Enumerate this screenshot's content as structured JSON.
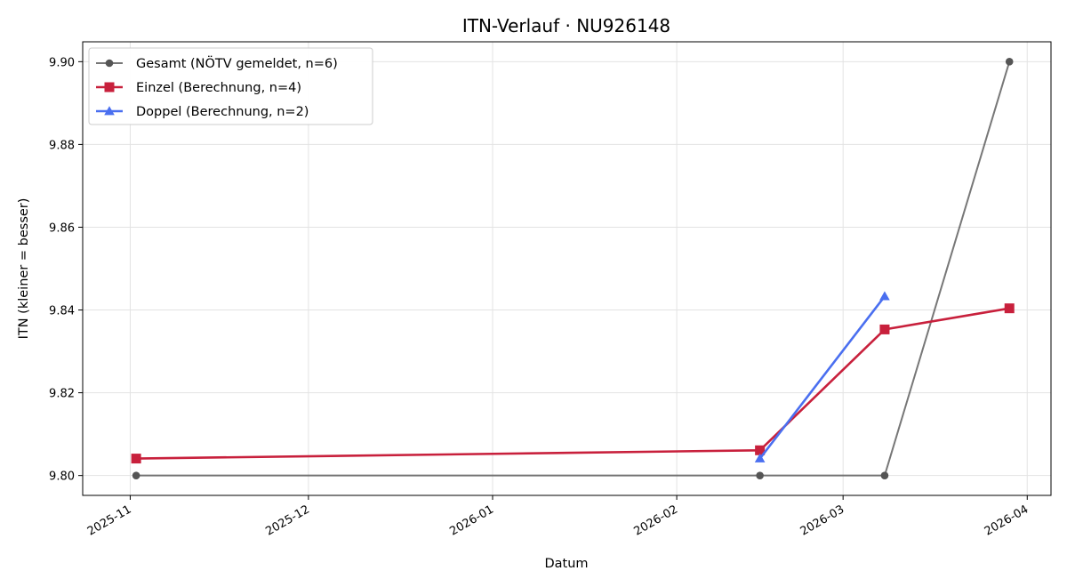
{
  "chart_data": {
    "type": "line",
    "title": "ITN-Verlauf · NU926148",
    "xlabel": "Datum",
    "ylabel": "ITN  (kleiner = besser)",
    "xlim": [
      "2025-10-24",
      "2026-04-05"
    ],
    "ylim": [
      9.7952,
      9.9048
    ],
    "x_ticks": [
      "2025-11",
      "2025-12",
      "2026-01",
      "2026-02",
      "2026-03",
      "2026-04"
    ],
    "y_ticks": [
      "9.80",
      "9.82",
      "9.84",
      "9.86",
      "9.88",
      "9.90"
    ],
    "grid": true,
    "legend_position": "top-left",
    "series": [
      {
        "name": "Gesamt (NÖTV gemeldet, n=6)",
        "color": "#555555",
        "marker": "circle",
        "points": [
          {
            "x": "2025-11-02",
            "y": 9.8
          },
          {
            "x": "2026-02-15",
            "y": 9.8
          },
          {
            "x": "2026-03-08",
            "y": 9.8
          },
          {
            "x": "2026-03-29",
            "y": 9.9
          }
        ]
      },
      {
        "name": "Einzel (Berechnung, n=4)",
        "color": "#c8203c",
        "marker": "square",
        "points": [
          {
            "x": "2025-11-02",
            "y": 9.8041
          },
          {
            "x": "2026-02-15",
            "y": 9.8061
          },
          {
            "x": "2026-03-08",
            "y": 9.8353
          },
          {
            "x": "2026-03-29",
            "y": 9.8404
          }
        ]
      },
      {
        "name": "Doppel (Berechnung, n=2)",
        "color": "#4a6ff0",
        "marker": "triangle",
        "points": [
          {
            "x": "2026-02-15",
            "y": 9.8041
          },
          {
            "x": "2026-03-08",
            "y": 9.8433
          }
        ]
      }
    ]
  }
}
